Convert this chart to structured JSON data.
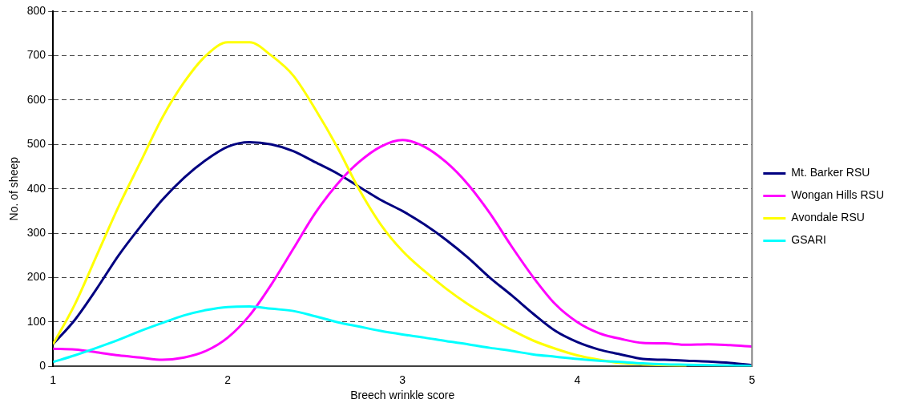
{
  "chart_data": {
    "type": "line",
    "xlabel": "Breech wrinkle score",
    "ylabel": "No. of sheep",
    "x": [
      1,
      1.125,
      1.25,
      1.375,
      1.5,
      1.625,
      1.75,
      1.875,
      2,
      2.125,
      2.25,
      2.375,
      2.5,
      2.625,
      2.75,
      2.875,
      3,
      3.125,
      3.25,
      3.375,
      3.5,
      3.625,
      3.75,
      3.875,
      4,
      4.125,
      4.25,
      4.375,
      4.5,
      4.625,
      4.75,
      4.875,
      5
    ],
    "series": [
      {
        "name": "Mt. Barker RSU",
        "color": "#000080",
        "values": [
          50,
          105,
          175,
          250,
          315,
          375,
          425,
          465,
          495,
          505,
          500,
          485,
          460,
          435,
          405,
          375,
          350,
          320,
          285,
          245,
          200,
          160,
          118,
          80,
          55,
          38,
          27,
          17,
          15,
          13,
          11,
          8,
          3
        ]
      },
      {
        "name": "Wongan Hills RSU",
        "color": "#ff00ff",
        "values": [
          40,
          38,
          32,
          25,
          20,
          15,
          20,
          35,
          65,
          115,
          185,
          265,
          345,
          410,
          460,
          495,
          510,
          495,
          460,
          410,
          345,
          270,
          200,
          140,
          100,
          75,
          62,
          53,
          52,
          49,
          50,
          48,
          45
        ]
      },
      {
        "name": "Avondale RSU",
        "color": "#ffff00",
        "values": [
          50,
          140,
          250,
          360,
          460,
          560,
          640,
          700,
          730,
          730,
          700,
          655,
          580,
          495,
          400,
          320,
          260,
          215,
          175,
          140,
          110,
          82,
          58,
          40,
          25,
          15,
          8,
          5,
          3,
          2,
          null,
          null,
          null
        ]
      },
      {
        "name": "GSARI",
        "color": "#00ffff",
        "values": [
          10,
          25,
          42,
          60,
          80,
          98,
          115,
          127,
          134,
          135,
          130,
          125,
          113,
          100,
          90,
          80,
          72,
          65,
          57,
          50,
          42,
          35,
          27,
          22,
          17,
          13,
          10,
          7,
          5,
          4,
          3,
          2,
          1
        ]
      }
    ],
    "xlim": [
      1,
      5
    ],
    "xticks": [
      1,
      2,
      3,
      4,
      5
    ],
    "ylim": [
      0,
      800
    ],
    "yticks": [
      0,
      100,
      200,
      300,
      400,
      500,
      600,
      700,
      800
    ],
    "grid": "y",
    "legend": "right",
    "marker": "none",
    "line_style": "solid"
  }
}
